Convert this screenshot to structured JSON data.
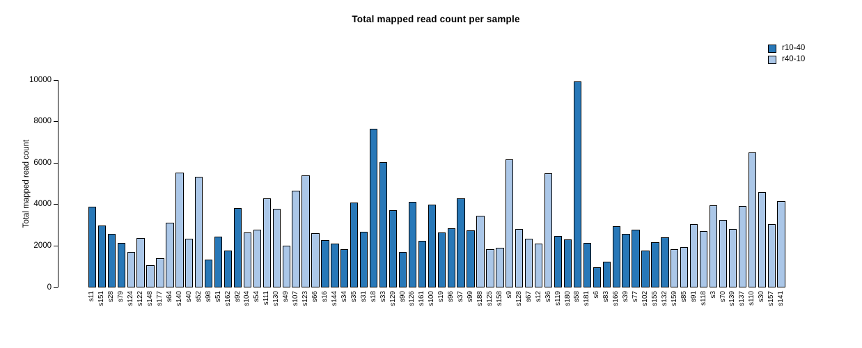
{
  "chart_data": {
    "type": "bar",
    "title": "Total mapped read count per sample",
    "xlabel": "",
    "ylabel": "Total mapped read count",
    "ylim": [
      0,
      10000
    ],
    "yticks": [
      0,
      2000,
      4000,
      6000,
      8000,
      10000
    ],
    "grid": false,
    "legend_position": "top-right",
    "bar_border_color": "#000000",
    "legend": [
      {
        "name": "r10-40",
        "color": "#2878b8"
      },
      {
        "name": "r40-10",
        "color": "#abc7e8"
      }
    ],
    "categories": [
      "s11",
      "s151",
      "s28",
      "s79",
      "s124",
      "s122",
      "s148",
      "s177",
      "s64",
      "s140",
      "s40",
      "s52",
      "s98",
      "s51",
      "s162",
      "s92",
      "s104",
      "s54",
      "s111",
      "s130",
      "s49",
      "s107",
      "s123",
      "s66",
      "s16",
      "s144",
      "s34",
      "s35",
      "s31",
      "s18",
      "s33",
      "s129",
      "s90",
      "s126",
      "s161",
      "s100",
      "s19",
      "s96",
      "s37",
      "s99",
      "s188",
      "s125",
      "s158",
      "s9",
      "s128",
      "s67",
      "s12",
      "s36",
      "s119",
      "s180",
      "s58",
      "s181",
      "s6",
      "s83",
      "s166",
      "s39",
      "s77",
      "s102",
      "s155",
      "s132",
      "s159",
      "s85",
      "s91",
      "s118",
      "s3",
      "s70",
      "s139",
      "s137",
      "s110",
      "s30",
      "s157",
      "s141"
    ],
    "values": [
      3890,
      2980,
      2590,
      2140,
      1720,
      2400,
      1090,
      1420,
      3120,
      5550,
      2340,
      5330,
      1360,
      2440,
      1780,
      3820,
      2640,
      2790,
      4290,
      3810,
      2010,
      4660,
      5400,
      2630,
      2270,
      2110,
      1840,
      4090,
      2670,
      7650,
      6030,
      3720,
      1700,
      4120,
      2240,
      3990,
      2640,
      2840,
      4290,
      2740,
      3450,
      1840,
      1900,
      6160,
      2830,
      2360,
      2120,
      5490,
      2470,
      2330,
      9940,
      2140,
      990,
      1250,
      2970,
      2600,
      2780,
      1770,
      2170,
      2420,
      1850,
      1950,
      3060,
      2720,
      3970,
      3240,
      2820,
      3930,
      6500,
      4600,
      3040,
      4160
    ],
    "series_of_bar": [
      "r10-40",
      "r10-40",
      "r10-40",
      "r10-40",
      "r40-10",
      "r40-10",
      "r40-10",
      "r40-10",
      "r40-10",
      "r40-10",
      "r40-10",
      "r40-10",
      "r10-40",
      "r10-40",
      "r10-40",
      "r10-40",
      "r40-10",
      "r40-10",
      "r40-10",
      "r40-10",
      "r40-10",
      "r40-10",
      "r40-10",
      "r40-10",
      "r10-40",
      "r10-40",
      "r10-40",
      "r10-40",
      "r10-40",
      "r10-40",
      "r10-40",
      "r10-40",
      "r10-40",
      "r10-40",
      "r10-40",
      "r10-40",
      "r10-40",
      "r10-40",
      "r10-40",
      "r10-40",
      "r40-10",
      "r40-10",
      "r40-10",
      "r40-10",
      "r40-10",
      "r40-10",
      "r40-10",
      "r40-10",
      "r10-40",
      "r10-40",
      "r10-40",
      "r10-40",
      "r10-40",
      "r10-40",
      "r10-40",
      "r10-40",
      "r10-40",
      "r10-40",
      "r10-40",
      "r10-40",
      "r40-10",
      "r40-10",
      "r40-10",
      "r40-10",
      "r40-10",
      "r40-10",
      "r40-10",
      "r40-10",
      "r40-10",
      "r40-10",
      "r40-10",
      "r40-10"
    ]
  }
}
